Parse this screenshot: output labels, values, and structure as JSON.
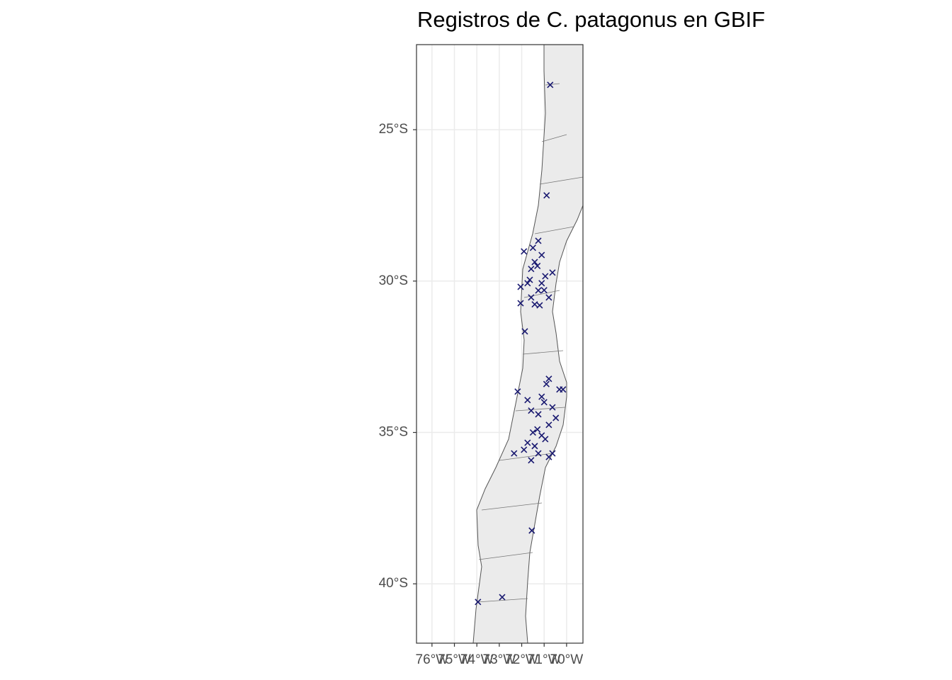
{
  "chart_data": {
    "type": "scatter",
    "title": "Registros de C. patagonus en GBIF",
    "x": [
      -70.73,
      -70.89,
      -71.86,
      -71.55,
      -73.95,
      -72.87,
      -72.18,
      -72.34,
      -71.9,
      -71.26,
      -71.11,
      -71.58,
      -70.95,
      -71.74,
      -71.26,
      -70.79,
      -72.05,
      -72.05,
      -71.42,
      -70.63,
      -71.58,
      -71.11,
      -71.42,
      -71.64,
      -71.3,
      -71.0,
      -71.5,
      -71.2,
      -70.79,
      -70.32,
      -71.11,
      -70.63,
      -71.26,
      -71.58,
      -70.79,
      -70.48,
      -71.11,
      -71.74,
      -71.9,
      -71.26,
      -70.79,
      -71.58,
      -71.42,
      -70.95,
      -70.16,
      -71.74,
      -70.63,
      -71.0,
      -71.3,
      -70.9,
      -71.5
    ],
    "values": [
      -23.52,
      -27.17,
      -31.66,
      -38.24,
      -40.6,
      -40.44,
      -33.65,
      -35.69,
      -29.02,
      -28.67,
      -29.14,
      -29.6,
      -29.84,
      -30.07,
      -30.31,
      -30.54,
      -30.19,
      -30.73,
      -30.77,
      -29.72,
      -30.54,
      -30.07,
      -29.37,
      -29.96,
      -29.5,
      -30.3,
      -28.9,
      -30.8,
      -33.23,
      -33.58,
      -33.82,
      -34.17,
      -34.4,
      -34.28,
      -34.75,
      -34.52,
      -35.1,
      -35.34,
      -35.57,
      -35.69,
      -35.81,
      -35.92,
      -35.45,
      -35.22,
      -33.58,
      -33.93,
      -35.69,
      -34.0,
      -34.9,
      -33.4,
      -35.0
    ],
    "color": "#191970",
    "xlim": [
      -76.69,
      -69.27
    ],
    "ylim": [
      -41.96,
      -22.19
    ],
    "xticks": [
      {
        "value": -76,
        "label": "76°W"
      },
      {
        "value": -75,
        "label": "75°W"
      },
      {
        "value": -74,
        "label": "74°W"
      },
      {
        "value": -73,
        "label": "73°W"
      },
      {
        "value": -72,
        "label": "72°W"
      },
      {
        "value": -71,
        "label": "71°W"
      },
      {
        "value": -70,
        "label": "70°W"
      }
    ],
    "yticks": [
      {
        "value": -25,
        "label": "25°S"
      },
      {
        "value": -30,
        "label": "30°S"
      },
      {
        "value": -35,
        "label": "35°S"
      },
      {
        "value": -40,
        "label": "40°S"
      }
    ],
    "grid": true
  }
}
